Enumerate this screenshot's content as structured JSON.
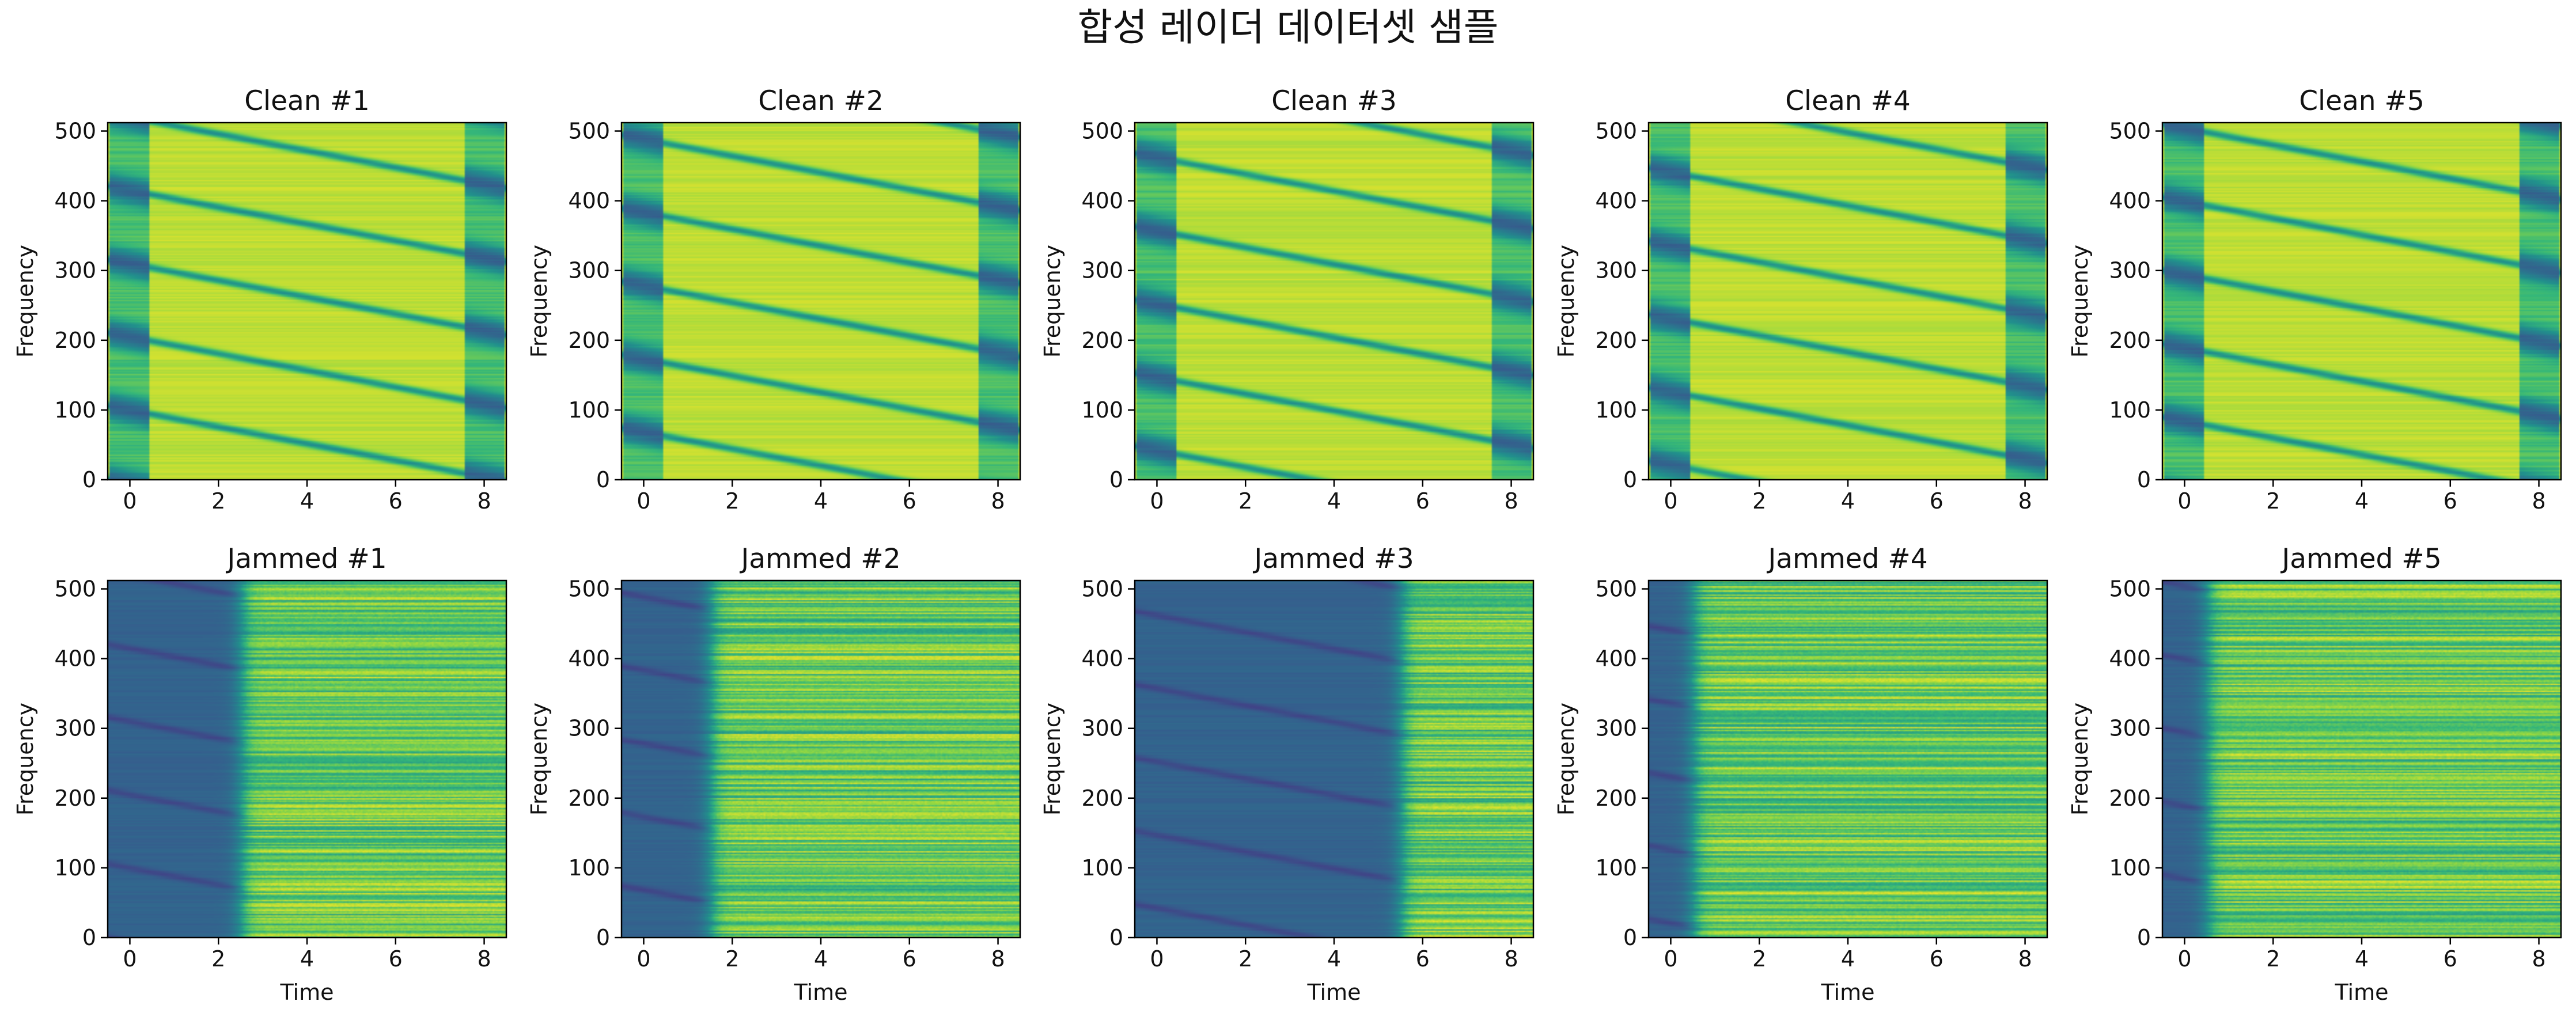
{
  "suptitle": "합성 레이더 데이터셋 샘플",
  "colormap": "viridis",
  "colors": {
    "viridis_dark": "#440154",
    "viridis_blue": "#31688e",
    "viridis_teal": "#21918c",
    "viridis_green": "#5ec962",
    "viridis_yellow": "#fde725",
    "axis": "#000000",
    "background": "#ffffff"
  },
  "chart_data": [
    {
      "type": "heatmap",
      "title": "Clean #1",
      "xlabel": "",
      "ylabel": "Frequency",
      "xlim": [
        -0.5,
        8.5
      ],
      "ylim": [
        0,
        512
      ],
      "xticks": [
        "0",
        "2",
        "4",
        "6",
        "8"
      ],
      "yticks": [
        "0",
        "100",
        "200",
        "300",
        "400",
        "500"
      ],
      "mode": "clean",
      "phase": 0.05,
      "jam_end": 0
    },
    {
      "type": "heatmap",
      "title": "Clean #2",
      "xlabel": "",
      "ylabel": "Frequency",
      "xlim": [
        -0.5,
        8.5
      ],
      "ylim": [
        0,
        512
      ],
      "xticks": [
        "0",
        "2",
        "4",
        "6",
        "8"
      ],
      "yticks": [
        "0",
        "100",
        "200",
        "300",
        "400",
        "500"
      ],
      "mode": "clean",
      "phase": 0.35,
      "jam_end": 0
    },
    {
      "type": "heatmap",
      "title": "Clean #3",
      "xlabel": "",
      "ylabel": "Frequency",
      "xlim": [
        -0.5,
        8.5
      ],
      "ylim": [
        0,
        512
      ],
      "xticks": [
        "0",
        "2",
        "4",
        "6",
        "8"
      ],
      "yticks": [
        "0",
        "100",
        "200",
        "300",
        "400",
        "500"
      ],
      "mode": "clean",
      "phase": 0.6,
      "jam_end": 0
    },
    {
      "type": "heatmap",
      "title": "Clean #4",
      "xlabel": "",
      "ylabel": "Frequency",
      "xlim": [
        -0.5,
        8.5
      ],
      "ylim": [
        0,
        512
      ],
      "xticks": [
        "0",
        "2",
        "4",
        "6",
        "8"
      ],
      "yticks": [
        "0",
        "100",
        "200",
        "300",
        "400",
        "500"
      ],
      "mode": "clean",
      "phase": 0.8,
      "jam_end": 0
    },
    {
      "type": "heatmap",
      "title": "Clean #5",
      "xlabel": "",
      "ylabel": "Frequency",
      "xlim": [
        -0.5,
        8.5
      ],
      "ylim": [
        0,
        512
      ],
      "xticks": [
        "0",
        "2",
        "4",
        "6",
        "8"
      ],
      "yticks": [
        "0",
        "100",
        "200",
        "300",
        "400",
        "500"
      ],
      "mode": "clean",
      "phase": 0.2,
      "jam_end": 0
    },
    {
      "type": "heatmap",
      "title": "Jammed #1",
      "xlabel": "Time",
      "ylabel": "Frequency",
      "xlim": [
        -0.5,
        8.5
      ],
      "ylim": [
        0,
        512
      ],
      "xticks": [
        "0",
        "2",
        "4",
        "6",
        "8"
      ],
      "yticks": [
        "0",
        "100",
        "200",
        "300",
        "400",
        "500"
      ],
      "mode": "jammed",
      "phase": 0.05,
      "jam_end": 2.5
    },
    {
      "type": "heatmap",
      "title": "Jammed #2",
      "xlabel": "Time",
      "ylabel": "Frequency",
      "xlim": [
        -0.5,
        8.5
      ],
      "ylim": [
        0,
        512
      ],
      "xticks": [
        "0",
        "2",
        "4",
        "6",
        "8"
      ],
      "yticks": [
        "0",
        "100",
        "200",
        "300",
        "400",
        "500"
      ],
      "mode": "jammed",
      "phase": 0.35,
      "jam_end": 1.5
    },
    {
      "type": "heatmap",
      "title": "Jammed #3",
      "xlabel": "Time",
      "ylabel": "Frequency",
      "xlim": [
        -0.5,
        8.5
      ],
      "ylim": [
        0,
        512
      ],
      "xticks": [
        "0",
        "2",
        "4",
        "6",
        "8"
      ],
      "yticks": [
        "0",
        "100",
        "200",
        "300",
        "400",
        "500"
      ],
      "mode": "jammed",
      "phase": 0.6,
      "jam_end": 5.5
    },
    {
      "type": "heatmap",
      "title": "Jammed #4",
      "xlabel": "Time",
      "ylabel": "Frequency",
      "xlim": [
        -0.5,
        8.5
      ],
      "ylim": [
        0,
        512
      ],
      "xticks": [
        "0",
        "2",
        "4",
        "6",
        "8"
      ],
      "yticks": [
        "0",
        "100",
        "200",
        "300",
        "400",
        "500"
      ],
      "mode": "jammed",
      "phase": 0.8,
      "jam_end": 0.5
    },
    {
      "type": "heatmap",
      "title": "Jammed #5",
      "xlabel": "Time",
      "ylabel": "Frequency",
      "xlim": [
        -0.5,
        8.5
      ],
      "ylim": [
        0,
        512
      ],
      "xticks": [
        "0",
        "2",
        "4",
        "6",
        "8"
      ],
      "yticks": [
        "0",
        "100",
        "200",
        "300",
        "400",
        "500"
      ],
      "mode": "jammed",
      "phase": 0.2,
      "jam_end": 0.5
    }
  ]
}
